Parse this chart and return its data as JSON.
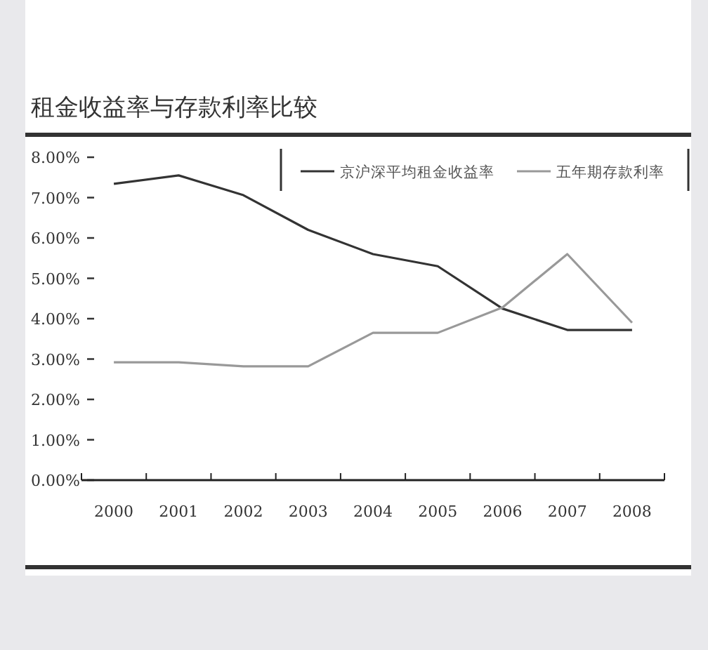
{
  "chart_data": {
    "type": "line",
    "title": "租金收益率与存款利率比较",
    "categories": [
      "2000",
      "2001",
      "2002",
      "2003",
      "2004",
      "2005",
      "2006",
      "2007",
      "2008"
    ],
    "series": [
      {
        "name": "京沪深平均租金收益率",
        "color": "#333333",
        "values": [
          7.34,
          7.55,
          7.06,
          6.2,
          5.6,
          5.3,
          4.25,
          3.72,
          3.72
        ]
      },
      {
        "name": "五年期存款利率",
        "color": "#999999",
        "values": [
          2.92,
          2.92,
          2.82,
          2.82,
          3.65,
          3.65,
          4.28,
          5.6,
          3.9
        ]
      }
    ],
    "ylim": [
      0,
      8
    ],
    "yticks": [
      {
        "value": 0,
        "label": "0.00%"
      },
      {
        "value": 1,
        "label": "1.00%"
      },
      {
        "value": 2,
        "label": "2.00%"
      },
      {
        "value": 3,
        "label": "3.00%"
      },
      {
        "value": 4,
        "label": "4.00%"
      },
      {
        "value": 5,
        "label": "5.00%"
      },
      {
        "value": 6,
        "label": "6.00%"
      },
      {
        "value": 7,
        "label": "7.00%"
      },
      {
        "value": 8,
        "label": "8.00%"
      }
    ],
    "legend": "top right",
    "grid": false,
    "marker": "none",
    "line_style": "solid"
  }
}
